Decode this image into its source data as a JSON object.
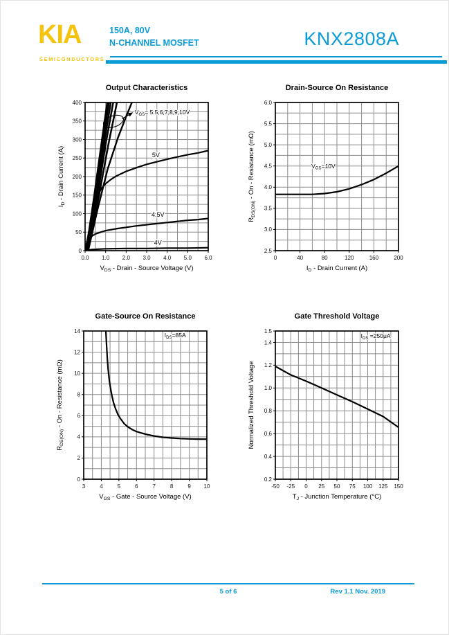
{
  "page": {
    "background": "#ffffff",
    "accent": "#0d9bd6",
    "logo_color": "#f5c30b"
  },
  "header": {
    "logo_text": "KIA",
    "logo_subtext": "SEMICONDUCTORS",
    "rating_line": "150A, 80V",
    "device_type": "N-CHANNEL MOSFET",
    "part_number": "KNX2808A"
  },
  "footer": {
    "page_indicator": "5 of 6",
    "revision": "Rev 1.1 Nov. 2019"
  },
  "chart_data": [
    {
      "id": "output-characteristics",
      "type": "line",
      "title": "Output Characteristics",
      "xlabel": "V~DS~ - Drain - Source Voltage (V)",
      "ylabel": "I~D~ - Drain Current (A)",
      "xlim": [
        0,
        6
      ],
      "ylim": [
        0,
        400
      ],
      "xminor": 0.5,
      "yminor": 25,
      "grid": true,
      "legend": "none",
      "xticks": {
        "values": [
          0,
          1,
          2,
          3,
          4,
          5,
          6
        ],
        "labels": [
          "0.0",
          "1.0",
          "2.0",
          "3.0",
          "4.0",
          "5.0",
          "6.0"
        ]
      },
      "yticks": {
        "values": [
          0,
          50,
          100,
          150,
          200,
          250,
          300,
          350,
          400
        ],
        "labels": [
          "0",
          "50",
          "100",
          "150",
          "200",
          "250",
          "300",
          "350",
          "400"
        ]
      },
      "series": [
        {
          "name": "VGS=10V",
          "width": 2.5,
          "points": [
            [
              0.05,
              0
            ],
            [
              0.45,
              150
            ],
            [
              0.8,
              290
            ],
            [
              1.08,
              400
            ]
          ]
        },
        {
          "name": "VGS=9V",
          "width": 2.5,
          "points": [
            [
              0.07,
              0
            ],
            [
              0.5,
              150
            ],
            [
              0.86,
              290
            ],
            [
              1.16,
              400
            ]
          ]
        },
        {
          "name": "VGS=8V",
          "width": 2.5,
          "points": [
            [
              0.09,
              0
            ],
            [
              0.55,
              150
            ],
            [
              0.93,
              290
            ],
            [
              1.25,
              400
            ]
          ]
        },
        {
          "name": "VGS=7V",
          "width": 2.5,
          "points": [
            [
              0.11,
              0
            ],
            [
              0.61,
              150
            ],
            [
              1.01,
              290
            ],
            [
              1.37,
              400
            ]
          ]
        },
        {
          "name": "VGS=6V",
          "width": 2.5,
          "points": [
            [
              0.13,
              0
            ],
            [
              0.68,
              150
            ],
            [
              1.13,
              285
            ],
            [
              1.55,
              400
            ]
          ]
        },
        {
          "name": "VGS=5.5V",
          "width": 2.4,
          "points": [
            [
              0.15,
              0
            ],
            [
              0.6,
              110
            ],
            [
              1.1,
              220
            ],
            [
              1.6,
              305
            ],
            [
              2.0,
              362
            ],
            [
              2.28,
              400
            ]
          ]
        },
        {
          "name": "VGS=5V",
          "width": 2.2,
          "points": [
            [
              0,
              0
            ],
            [
              0.2,
              55
            ],
            [
              0.4,
              110
            ],
            [
              0.6,
              148
            ],
            [
              0.8,
              168
            ],
            [
              1.0,
              181
            ],
            [
              1.25,
              192
            ],
            [
              1.5,
              201
            ],
            [
              2.0,
              214
            ],
            [
              2.5,
              224
            ],
            [
              3.0,
              233
            ],
            [
              3.5,
              240
            ],
            [
              4.0,
              247
            ],
            [
              4.5,
              253
            ],
            [
              5.0,
              259
            ],
            [
              5.5,
              264
            ],
            [
              6.0,
              270
            ]
          ]
        },
        {
          "name": "VGS=4.5V",
          "width": 2.2,
          "points": [
            [
              0,
              0
            ],
            [
              0.1,
              18
            ],
            [
              0.2,
              30
            ],
            [
              0.35,
              40
            ],
            [
              0.5,
              45
            ],
            [
              0.75,
              50
            ],
            [
              1.0,
              54
            ],
            [
              1.5,
              59
            ],
            [
              2.0,
              63
            ],
            [
              2.5,
              67
            ],
            [
              3.0,
              70
            ],
            [
              3.5,
              73
            ],
            [
              4.0,
              76
            ],
            [
              4.5,
              79
            ],
            [
              5.0,
              82
            ],
            [
              5.5,
              84
            ],
            [
              6.0,
              87
            ]
          ]
        },
        {
          "name": "VGS=4V",
          "width": 2.2,
          "points": [
            [
              0,
              0
            ],
            [
              0.3,
              3
            ],
            [
              0.6,
              4
            ],
            [
              1.0,
              5
            ],
            [
              2.0,
              6
            ],
            [
              3.0,
              6
            ],
            [
              4.0,
              7
            ],
            [
              5.0,
              7
            ],
            [
              6.0,
              8
            ]
          ]
        }
      ],
      "curve_labels": [
        {
          "x": 3.45,
          "y": 252,
          "text": "5V"
        },
        {
          "x": 3.55,
          "y": 92,
          "text": "4.5V"
        },
        {
          "x": 3.55,
          "y": 16,
          "text": "4V"
        }
      ],
      "annotations": [
        {
          "type": "text",
          "x": 2.42,
          "y": 368,
          "anchor": "start",
          "text": "V~GS~= 5.5,6,7,8,9,10V"
        },
        {
          "type": "ellipse",
          "x": 1.38,
          "y": 349,
          "rx": 15,
          "ry": 8,
          "rot": -18
        },
        {
          "type": "arrow",
          "x1": 1.8,
          "y1": 356,
          "x2": 2.3,
          "y2": 372
        }
      ]
    },
    {
      "id": "drain-source-on-resistance",
      "type": "line",
      "title": "Drain-Source On Resistance",
      "xlabel": "I~D~ - Drain Current (A)",
      "ylabel": "R~DS(ON)~ - On - Resistance (mΩ)",
      "xlim": [
        0,
        200
      ],
      "ylim": [
        2.5,
        6.0
      ],
      "xminor": 20,
      "yminor": 0.25,
      "grid": true,
      "legend": "none",
      "xticks": {
        "values": [
          0,
          40,
          80,
          120,
          160,
          200
        ],
        "labels": [
          "0",
          "40",
          "80",
          "120",
          "160",
          "200"
        ]
      },
      "yticks": {
        "values": [
          2.5,
          3.0,
          3.5,
          4.0,
          4.5,
          5.0,
          5.5,
          6.0
        ],
        "labels": [
          "2.5",
          "3.0",
          "3.5",
          "4.0",
          "4.5",
          "5.0",
          "5.5",
          "6.0"
        ]
      },
      "series": [
        {
          "name": "VGS=10V",
          "width": 2.2,
          "points": [
            [
              0,
              3.83
            ],
            [
              20,
              3.83
            ],
            [
              40,
              3.83
            ],
            [
              60,
              3.83
            ],
            [
              80,
              3.85
            ],
            [
              100,
              3.89
            ],
            [
              120,
              3.96
            ],
            [
              140,
              4.06
            ],
            [
              160,
              4.18
            ],
            [
              180,
              4.33
            ],
            [
              200,
              4.5
            ]
          ]
        }
      ],
      "curve_labels": [],
      "annotations": [
        {
          "type": "text",
          "x": 78,
          "y": 4.45,
          "anchor": "middle",
          "text": "V~GS~=10V"
        }
      ]
    },
    {
      "id": "gate-source-on-resistance",
      "type": "line",
      "title": "Gate-Source On Resistance",
      "xlabel": "V~GS~ - Gate - Source Voltage (V)",
      "ylabel": "R~DS(ON)~ - On - Resistance (mΩ)",
      "xlim": [
        3,
        10
      ],
      "ylim": [
        0,
        14
      ],
      "xminor": 0.5,
      "yminor": 1,
      "grid": true,
      "legend": "none",
      "xticks": {
        "values": [
          3,
          4,
          5,
          6,
          7,
          8,
          9,
          10
        ],
        "labels": [
          "3",
          "4",
          "5",
          "6",
          "7",
          "8",
          "9",
          "10"
        ]
      },
      "yticks": {
        "values": [
          0,
          2,
          4,
          6,
          8,
          10,
          12,
          14
        ],
        "labels": [
          "0",
          "2",
          "4",
          "6",
          "8",
          "10",
          "12",
          "14"
        ]
      },
      "series": [
        {
          "name": "IDS=85A",
          "width": 2.2,
          "points": [
            [
              4.26,
              14
            ],
            [
              4.3,
              12.6
            ],
            [
              4.34,
              11.4
            ],
            [
              4.39,
              10.4
            ],
            [
              4.45,
              9.4
            ],
            [
              4.52,
              8.6
            ],
            [
              4.6,
              7.9
            ],
            [
              4.7,
              7.2
            ],
            [
              4.82,
              6.6
            ],
            [
              4.95,
              6.1
            ],
            [
              5.1,
              5.7
            ],
            [
              5.3,
              5.25
            ],
            [
              5.5,
              4.95
            ],
            [
              5.75,
              4.7
            ],
            [
              6.0,
              4.5
            ],
            [
              6.3,
              4.35
            ],
            [
              6.6,
              4.22
            ],
            [
              7.0,
              4.08
            ],
            [
              7.5,
              3.96
            ],
            [
              8.0,
              3.89
            ],
            [
              8.5,
              3.84
            ],
            [
              9.0,
              3.81
            ],
            [
              9.5,
              3.79
            ],
            [
              10.0,
              3.78
            ]
          ]
        }
      ],
      "curve_labels": [],
      "annotations": [
        {
          "type": "text",
          "x": 8.2,
          "y": 13.4,
          "anchor": "middle",
          "text": "I~DS~=85A"
        }
      ]
    },
    {
      "id": "gate-threshold-voltage",
      "type": "line",
      "title": "Gate Threshold Voltage",
      "xlabel": "T~J~ - Junction Temperature (°C)",
      "ylabel": "Normalized Threshold Voltage",
      "xlim": [
        -50,
        150
      ],
      "ylim": [
        0.2,
        1.5
      ],
      "xminor": 12.5,
      "yminor": 0.1,
      "grid": true,
      "legend": "none",
      "xticks": {
        "values": [
          -50,
          -25,
          0,
          25,
          50,
          75,
          100,
          125,
          150
        ],
        "labels": [
          "-50",
          "-25",
          "0",
          "25",
          "50",
          "75",
          "100",
          "125",
          "150"
        ]
      },
      "yticks": {
        "values": [
          0.2,
          0.4,
          0.6,
          0.8,
          1.0,
          1.2,
          1.4,
          1.5
        ],
        "labels": [
          "0.2",
          "0.4",
          "0.6",
          "0.8",
          "1.0",
          "1.2",
          "1.4",
          "1.5"
        ]
      },
      "series": [
        {
          "name": "IDS=250uA",
          "width": 2.2,
          "points": [
            [
              -50,
              1.19
            ],
            [
              -25,
              1.115
            ],
            [
              0,
              1.06
            ],
            [
              25,
              1.0
            ],
            [
              50,
              0.94
            ],
            [
              75,
              0.88
            ],
            [
              100,
              0.815
            ],
            [
              125,
              0.75
            ],
            [
              150,
              0.655
            ]
          ]
        }
      ],
      "curve_labels": [],
      "annotations": [
        {
          "type": "text",
          "x": 113,
          "y": 1.44,
          "anchor": "middle",
          "text": "I~DS~ =250μA"
        }
      ]
    }
  ]
}
